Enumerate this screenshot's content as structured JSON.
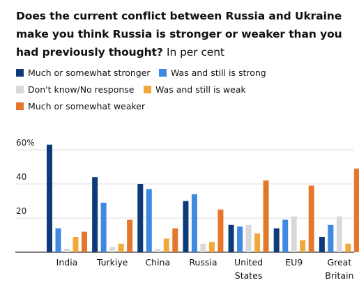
{
  "title": "Does the current conflict between Russia and Ukraine make you think Russia is stronger or weaker than you had previously thought?",
  "unit_note": "In per cent",
  "colors": {
    "series": [
      "#0d3b7a",
      "#3f8ae0",
      "#d9d9d9",
      "#f2a93b",
      "#e5772d"
    ]
  },
  "chart_data": {
    "type": "bar",
    "categories": [
      "India",
      "Turkiye",
      "China",
      "Russia",
      "United States",
      "EU9",
      "Great Britain"
    ],
    "category_lines": [
      [
        "India"
      ],
      [
        "Turkiye"
      ],
      [
        "China"
      ],
      [
        "Russia"
      ],
      [
        "United",
        "States"
      ],
      [
        "EU9"
      ],
      [
        "Great",
        "Britain"
      ]
    ],
    "series": [
      {
        "name": "Much or somewhat stronger",
        "values": [
          63,
          44,
          40,
          30,
          16,
          14,
          9
        ]
      },
      {
        "name": "Was and still is strong",
        "values": [
          14,
          29,
          37,
          34,
          15,
          19,
          16
        ]
      },
      {
        "name": "Don't know/No response",
        "values": [
          2,
          3,
          2,
          5,
          16,
          21,
          21
        ]
      },
      {
        "name": "Was and still is weak",
        "values": [
          9,
          5,
          8,
          6,
          11,
          7,
          5
        ]
      },
      {
        "name": "Much or somewhat weaker",
        "values": [
          12,
          19,
          14,
          25,
          42,
          39,
          49
        ]
      }
    ],
    "yticks": [
      "60%",
      "40",
      "20"
    ],
    "ytick_values": [
      60,
      40,
      20
    ],
    "ylim": [
      0,
      66
    ],
    "grid": true,
    "legend_position": "top-left"
  }
}
